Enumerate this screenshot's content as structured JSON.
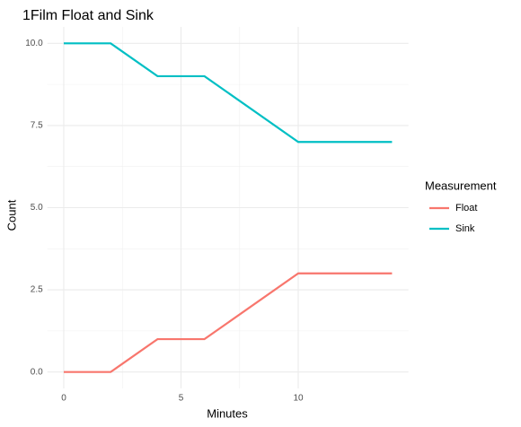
{
  "chart_data": {
    "type": "line",
    "title": "1Film Float and Sink",
    "x_label": "Minutes",
    "y_label": "Count",
    "legend_title": "Measurement",
    "x": [
      0,
      2,
      4,
      6,
      10,
      14
    ],
    "series": [
      {
        "name": "Float",
        "color": "#F8766D",
        "values": [
          0,
          0,
          1,
          1,
          3,
          3
        ]
      },
      {
        "name": "Sink",
        "color": "#00BFC4",
        "values": [
          10,
          10,
          9,
          9,
          7,
          7
        ]
      }
    ],
    "xlim": [
      -0.7,
      14.7
    ],
    "xticks": [
      0,
      5,
      10
    ],
    "ylim": [
      -0.5,
      10.5
    ],
    "yticks": [
      {
        "value": 0,
        "label": "0.0"
      },
      2.5,
      {
        "value": 5,
        "label": "5.0"
      },
      7.5,
      {
        "value": 10,
        "label": "10.0"
      }
    ],
    "grid": true,
    "legend": "right"
  }
}
